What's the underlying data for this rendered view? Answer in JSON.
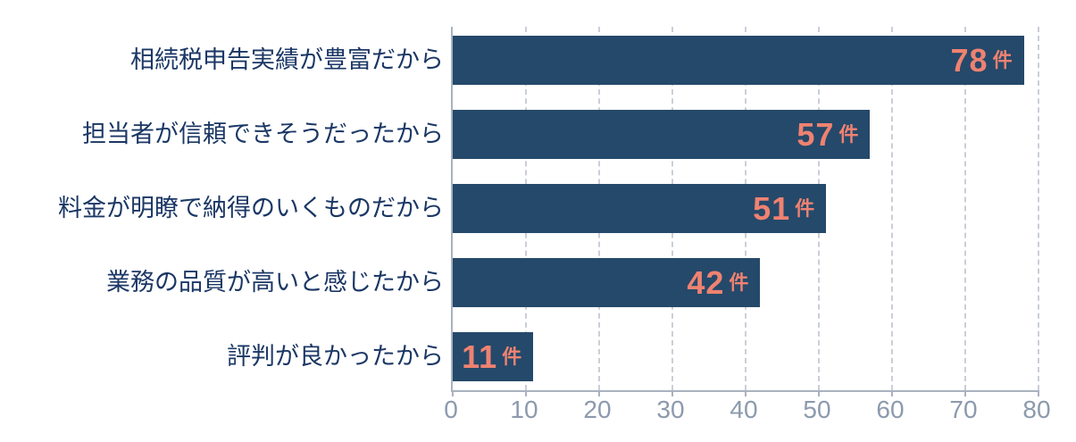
{
  "chart_data": {
    "type": "bar",
    "orientation": "horizontal",
    "title": "",
    "xlabel": "",
    "ylabel": "",
    "categories": [
      "相続税申告実績が豊富だから",
      "担当者が信頼できそうだったから",
      "料金が明瞭で納得のいくものだから",
      "業務の品質が高いと感じたから",
      "評判が良かったから"
    ],
    "values": [
      78,
      57,
      51,
      42,
      11
    ],
    "value_unit_suffix": "件",
    "xlim": [
      0,
      80
    ],
    "xticks": [
      0,
      10,
      20,
      30,
      40,
      50,
      60,
      70,
      80
    ],
    "grid": "vertical-dashed",
    "legend": "none",
    "colors": {
      "bar": "#25496A",
      "value_label": "#EF8271",
      "category_label": "#1B3765",
      "tick_label": "#8C9AAD",
      "axis_line": "#A9B2BE",
      "gridline": "#C9CFD8",
      "background": "#FFFFFF"
    }
  }
}
